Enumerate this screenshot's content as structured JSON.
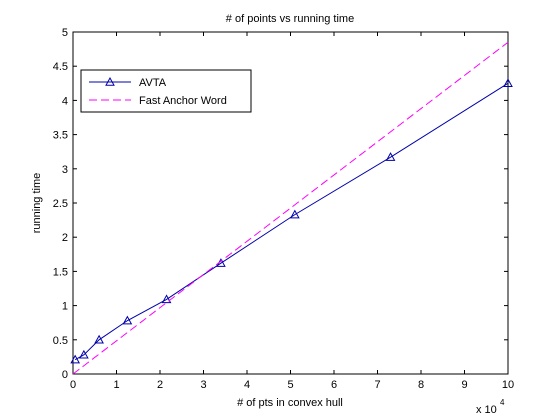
{
  "chart_data": {
    "type": "line",
    "title": "# of points  vs running time",
    "xlabel": "# of pts in convex hull",
    "ylabel": "running time",
    "x_multiplier_base": "x 10",
    "x_multiplier_exp": "4",
    "xlim": [
      0,
      10
    ],
    "ylim": [
      0,
      5
    ],
    "xticks": [
      "0",
      "1",
      "2",
      "3",
      "4",
      "5",
      "6",
      "7",
      "8",
      "9",
      "10"
    ],
    "yticks": [
      "0",
      "0.5",
      "1",
      "1.5",
      "2",
      "2.5",
      "3",
      "3.5",
      "4",
      "4.5",
      "5"
    ],
    "grid": false,
    "legend_position": "top-left",
    "series": [
      {
        "name": "AVTA",
        "color": "#0000aa",
        "style": "solid",
        "marker": "triangle",
        "x": [
          0.05,
          0.25,
          0.6,
          1.25,
          2.15,
          3.4,
          5.1,
          7.3,
          10.0
        ],
        "y": [
          0.21,
          0.28,
          0.5,
          0.78,
          1.09,
          1.62,
          2.33,
          3.17,
          4.25
        ]
      },
      {
        "name": "Fast Anchor Word",
        "color": "#ff00ff",
        "style": "dashed",
        "marker": "none",
        "x": [
          0,
          10
        ],
        "y": [
          0,
          4.85
        ]
      }
    ]
  }
}
